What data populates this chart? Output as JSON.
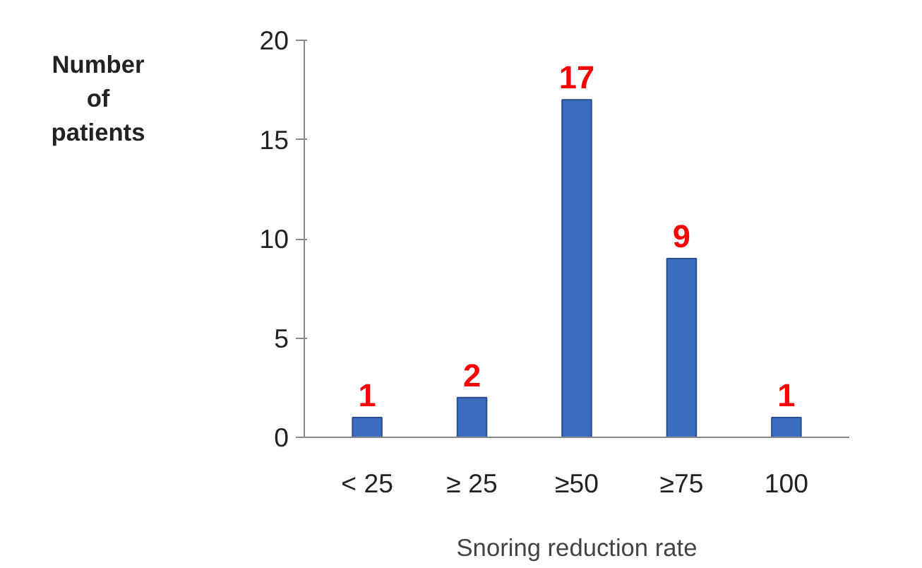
{
  "chart_data": {
    "type": "bar",
    "xlabel": "Snoring reduction rate",
    "ylabel": "Number of patients",
    "categories": [
      "< 25",
      "≥ 25",
      "≥50",
      "≥75",
      "100"
    ],
    "values": [
      1,
      2,
      17,
      9,
      1
    ],
    "color": "#3a6cc0",
    "ylim": [
      0,
      20
    ],
    "yticks": [
      0,
      5,
      10,
      15,
      20
    ],
    "grid": false,
    "data_labels": true
  }
}
